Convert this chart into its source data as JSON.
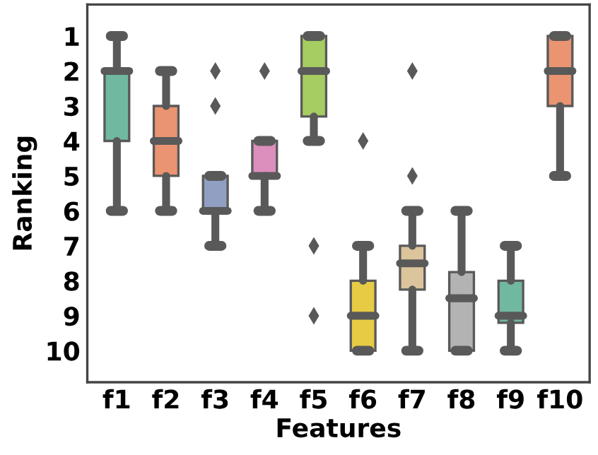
{
  "chart_data": {
    "type": "box",
    "xlabel": "Features",
    "ylabel": "Ranking",
    "categories": [
      "f1",
      "f2",
      "f3",
      "f4",
      "f5",
      "f6",
      "f7",
      "f8",
      "f9",
      "f10"
    ],
    "colors": [
      "#71b8a1",
      "#eb9472",
      "#909fc2",
      "#dc8fbd",
      "#a5cd61",
      "#e8cb44",
      "#dcc49c",
      "#b3b3b3",
      "#71b8a1",
      "#eb9472"
    ],
    "boxes": [
      {
        "low": 1,
        "q1": 2,
        "median": 2,
        "q3": 4,
        "high": 6
      },
      {
        "low": 2,
        "q1": 3,
        "median": 4,
        "q3": 5,
        "high": 6
      },
      {
        "low": 5,
        "q1": 5,
        "median": 6,
        "q3": 6,
        "high": 7,
        "outliers": [
          2,
          3
        ]
      },
      {
        "low": 4,
        "q1": 4,
        "median": 5,
        "q3": 5,
        "high": 6,
        "outliers": [
          2
        ]
      },
      {
        "low": 1,
        "q1": 1,
        "median": 2,
        "q3": 3.3,
        "high": 4,
        "outliers": [
          7,
          9
        ]
      },
      {
        "low": 7,
        "q1": 8,
        "median": 9,
        "q3": 10,
        "high": 10,
        "outliers": [
          4
        ]
      },
      {
        "low": 6,
        "q1": 7,
        "median": 7.5,
        "q3": 8.25,
        "high": 10,
        "outliers": [
          2,
          5
        ]
      },
      {
        "low": 6,
        "q1": 7.75,
        "median": 8.5,
        "q3": 10,
        "high": 10
      },
      {
        "low": 7,
        "q1": 8,
        "median": 9,
        "q3": 9.2,
        "high": 10
      },
      {
        "low": 1,
        "q1": 1,
        "median": 2,
        "q3": 3,
        "high": 5
      }
    ],
    "ylim": [
      10.9,
      0.1
    ],
    "yticks": [
      1,
      2,
      3,
      4,
      5,
      6,
      7,
      8,
      9,
      10
    ],
    "grid": false
  }
}
